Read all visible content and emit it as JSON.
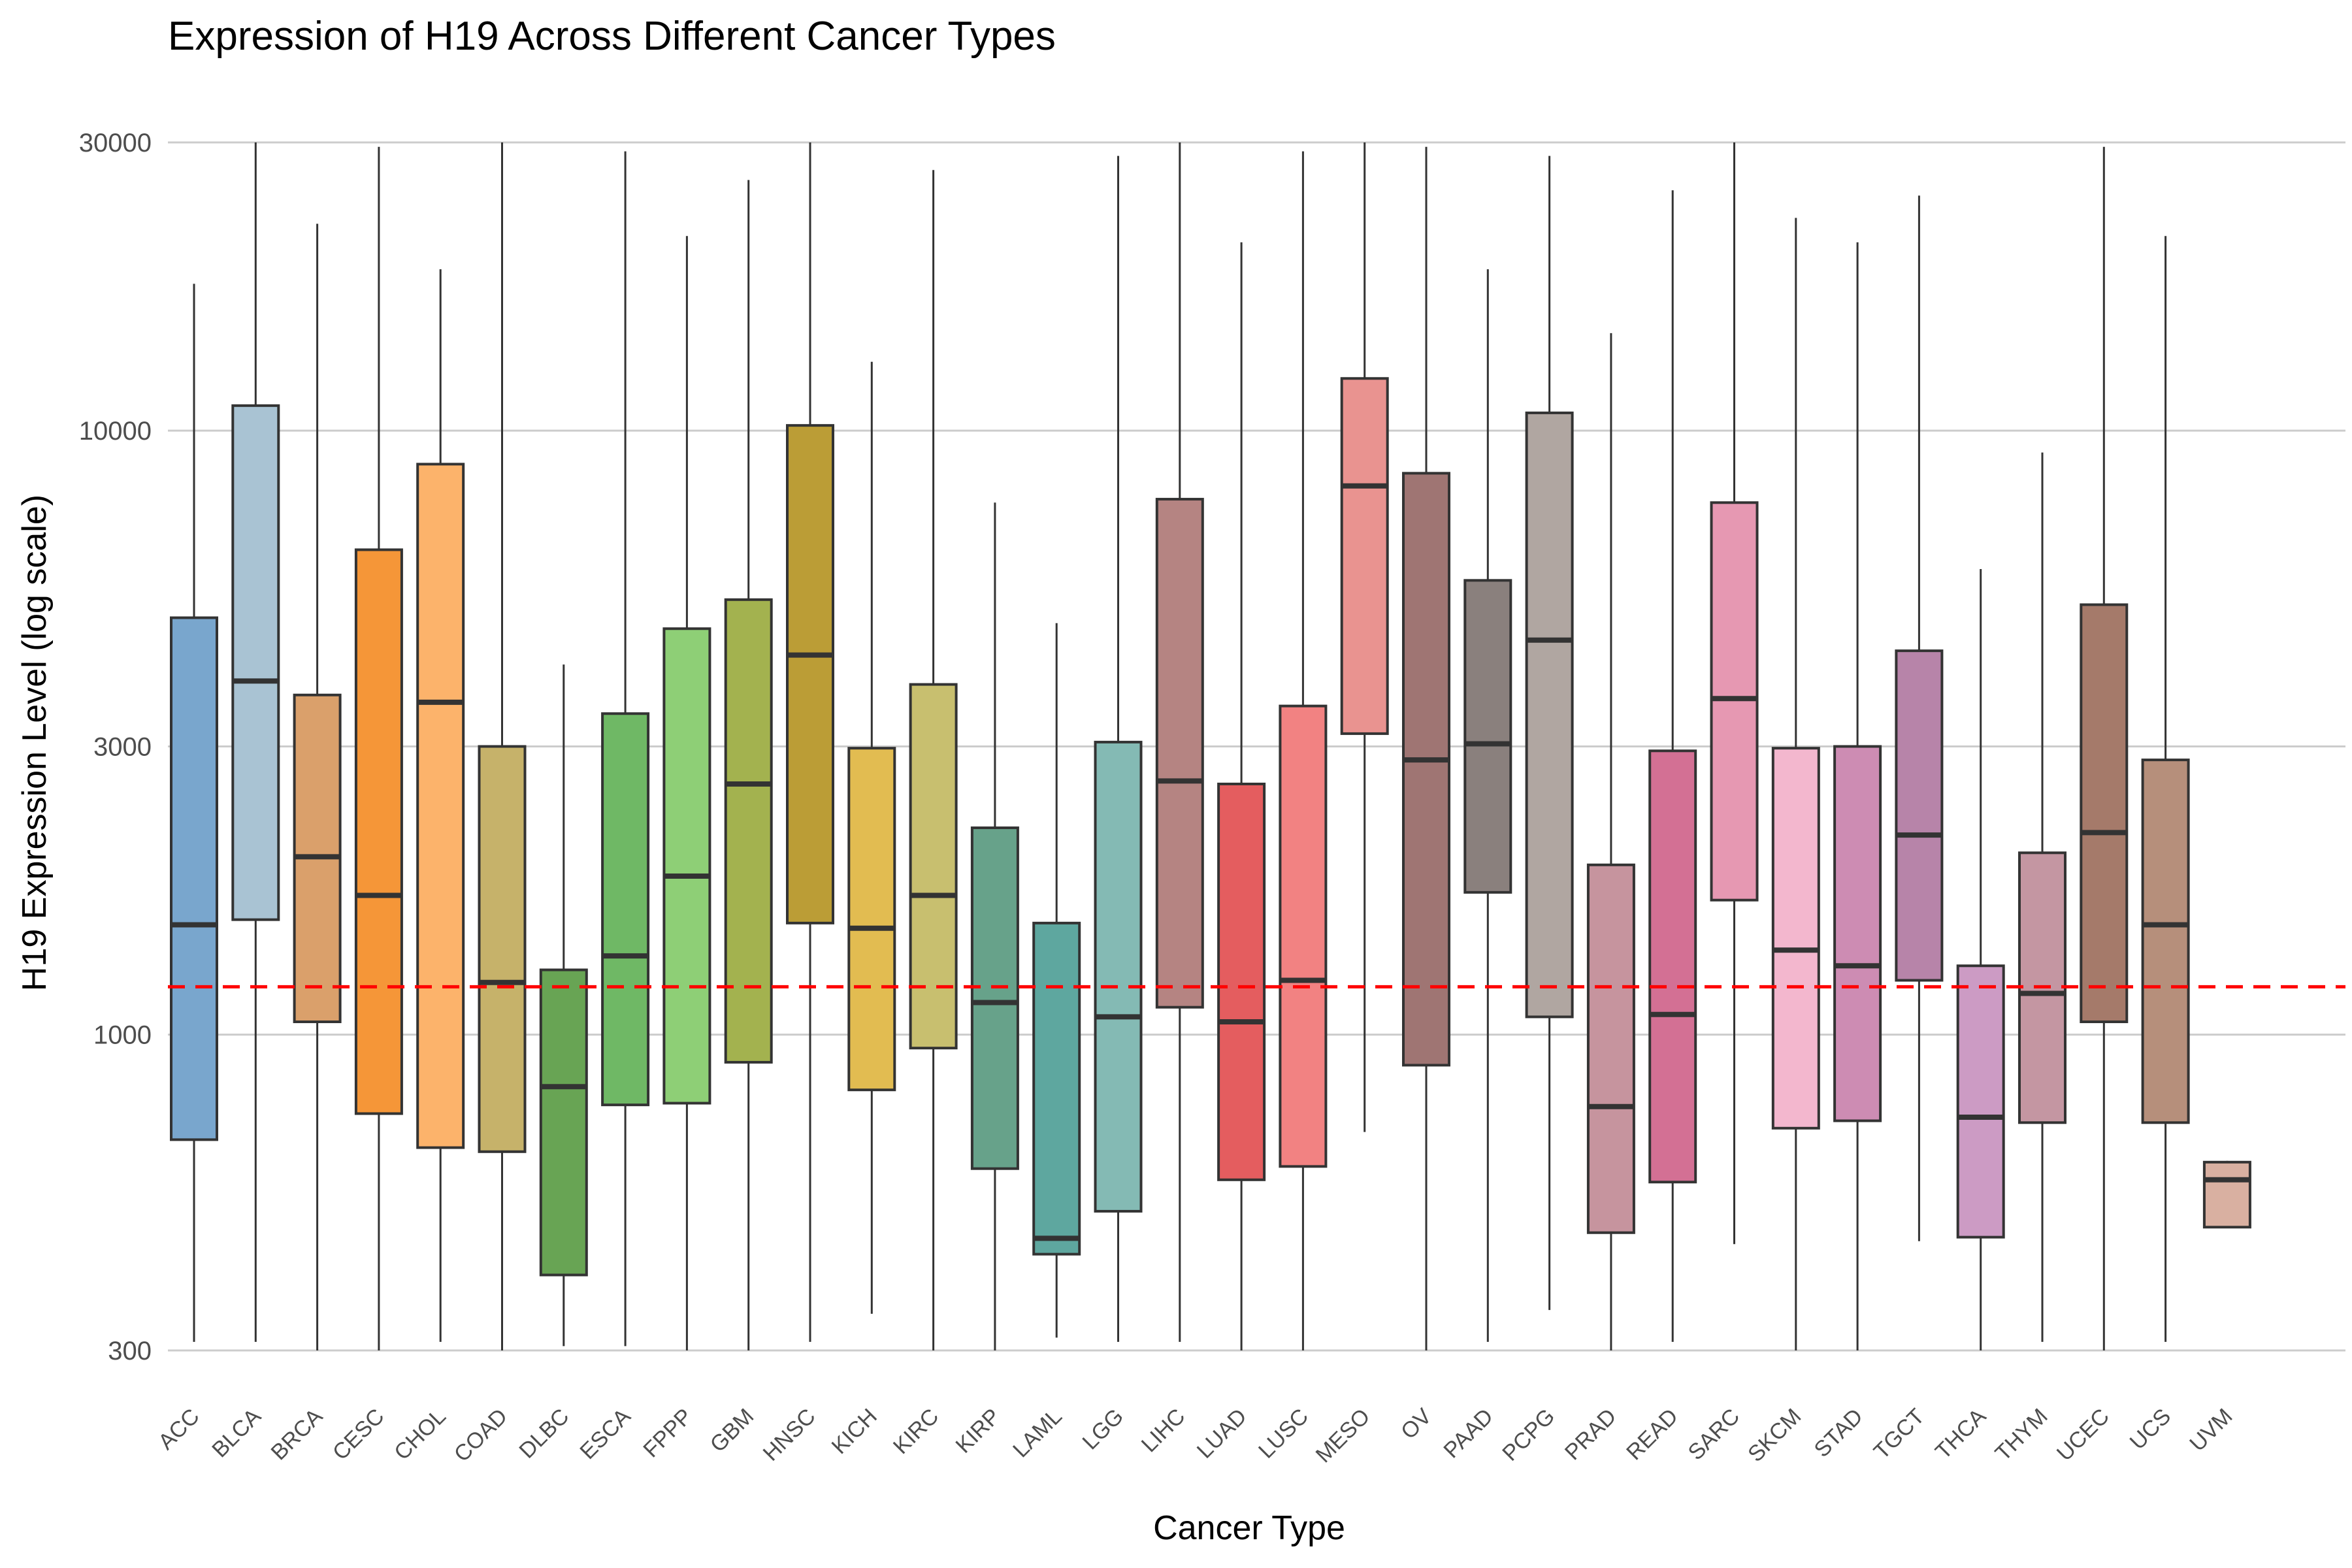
{
  "chart_data": {
    "type": "box",
    "title": "Expression of H19 Across Different Cancer Types",
    "xlabel": "Cancer Type",
    "ylabel": "H19 Expression Level (log scale)",
    "yscale": "log",
    "ylim": [
      300,
      30000
    ],
    "yticks": [
      300,
      1000,
      3000,
      10000,
      30000
    ],
    "ytick_labels": [
      "300",
      "1000",
      "3000",
      "10000",
      "30000"
    ],
    "grid": true,
    "legend": "none",
    "reference_line": {
      "y": 1200,
      "style": "dashed",
      "color": "#ff0000"
    },
    "categories": [
      "ACC",
      "BLCA",
      "BRCA",
      "CESC",
      "CHOL",
      "COAD",
      "DLBC",
      "ESCA",
      "FPPP",
      "GBM",
      "HNSC",
      "KICH",
      "KIRC",
      "KIRP",
      "LAML",
      "LGG",
      "LIHC",
      "LUAD",
      "LUSC",
      "MESO",
      "OV",
      "PAAD",
      "PCPG",
      "PRAD",
      "READ",
      "SARC",
      "SKCM",
      "STAD",
      "TGCT",
      "THCA",
      "THYM",
      "UCEC",
      "UCS",
      "UVM"
    ],
    "boxes": [
      {
        "label": "ACC",
        "min": 310,
        "q1": 670,
        "median": 1520,
        "q3": 4900,
        "max": 17500,
        "color": "#79a6cd"
      },
      {
        "label": "BLCA",
        "min": 310,
        "q1": 1550,
        "median": 3850,
        "q3": 11000,
        "max": 30000,
        "color": "#a9c3d3"
      },
      {
        "label": "BRCA",
        "min": 300,
        "q1": 1050,
        "median": 1970,
        "q3": 3650,
        "max": 22000,
        "color": "#daa06b"
      },
      {
        "label": "CESC",
        "min": 300,
        "q1": 740,
        "median": 1700,
        "q3": 6350,
        "max": 29500,
        "color": "#f59638"
      },
      {
        "label": "CHOL",
        "min": 310,
        "q1": 650,
        "median": 3550,
        "q3": 8800,
        "max": 18500,
        "color": "#fcb36b"
      },
      {
        "label": "COAD",
        "min": 300,
        "q1": 640,
        "median": 1220,
        "q3": 3000,
        "max": 30000,
        "color": "#c6b26a"
      },
      {
        "label": "DLBC",
        "min": 305,
        "q1": 400,
        "median": 820,
        "q3": 1280,
        "max": 4100,
        "color": "#68a454"
      },
      {
        "label": "ESCA",
        "min": 305,
        "q1": 765,
        "median": 1350,
        "q3": 3400,
        "max": 29000,
        "color": "#6fb865"
      },
      {
        "label": "FPPP",
        "min": 300,
        "q1": 770,
        "median": 1830,
        "q3": 4700,
        "max": 21000,
        "color": "#8ecf76"
      },
      {
        "label": "GBM",
        "min": 300,
        "q1": 900,
        "median": 2600,
        "q3": 5250,
        "max": 26000,
        "color": "#a3b24f"
      },
      {
        "label": "HNSC",
        "min": 310,
        "q1": 1530,
        "median": 4250,
        "q3": 10200,
        "max": 30000,
        "color": "#bb9d36"
      },
      {
        "label": "KICH",
        "min": 345,
        "q1": 810,
        "median": 1500,
        "q3": 2980,
        "max": 13000,
        "color": "#e2bc51"
      },
      {
        "label": "KIRC",
        "min": 300,
        "q1": 950,
        "median": 1700,
        "q3": 3800,
        "max": 27000,
        "color": "#c8bf6f"
      },
      {
        "label": "KIRP",
        "min": 300,
        "q1": 600,
        "median": 1130,
        "q3": 2200,
        "max": 7600,
        "color": "#67a28a"
      },
      {
        "label": "LAML",
        "min": 315,
        "q1": 433,
        "median": 460,
        "q3": 1530,
        "max": 4800,
        "color": "#5ea79f"
      },
      {
        "label": "LGG",
        "min": 310,
        "q1": 510,
        "median": 1070,
        "q3": 3050,
        "max": 28500,
        "color": "#84bab4"
      },
      {
        "label": "LIHC",
        "min": 310,
        "q1": 1110,
        "median": 2630,
        "q3": 7700,
        "max": 30000,
        "color": "#b58482"
      },
      {
        "label": "LUAD",
        "min": 300,
        "q1": 575,
        "median": 1050,
        "q3": 2600,
        "max": 20500,
        "color": "#e45d5f"
      },
      {
        "label": "LUSC",
        "min": 300,
        "q1": 605,
        "median": 1230,
        "q3": 3500,
        "max": 29000,
        "color": "#f28282"
      },
      {
        "label": "MESO",
        "min": 690,
        "q1": 3150,
        "median": 8100,
        "q3": 12200,
        "max": 30000,
        "color": "#e99390"
      },
      {
        "label": "OV",
        "min": 300,
        "q1": 890,
        "median": 2850,
        "q3": 8500,
        "max": 29500,
        "color": "#9f7573"
      },
      {
        "label": "PAAD",
        "min": 310,
        "q1": 1720,
        "median": 3030,
        "q3": 5650,
        "max": 18500,
        "color": "#8a807d"
      },
      {
        "label": "PCPG",
        "min": 350,
        "q1": 1070,
        "median": 4500,
        "q3": 10700,
        "max": 28500,
        "color": "#b0a6a1"
      },
      {
        "label": "PRAD",
        "min": 300,
        "q1": 470,
        "median": 760,
        "q3": 1910,
        "max": 14500,
        "color": "#c6949e"
      },
      {
        "label": "READ",
        "min": 310,
        "q1": 570,
        "median": 1080,
        "q3": 2950,
        "max": 25000,
        "color": "#d37094"
      },
      {
        "label": "SARC",
        "min": 450,
        "q1": 1670,
        "median": 3600,
        "q3": 7600,
        "max": 30000,
        "color": "#e698b2"
      },
      {
        "label": "SKCM",
        "min": 300,
        "q1": 700,
        "median": 1380,
        "q3": 2980,
        "max": 22500,
        "color": "#f3b7ce"
      },
      {
        "label": "STAD",
        "min": 300,
        "q1": 720,
        "median": 1300,
        "q3": 3000,
        "max": 20500,
        "color": "#cd8cb3"
      },
      {
        "label": "TGCT",
        "min": 455,
        "q1": 1230,
        "median": 2140,
        "q3": 4320,
        "max": 24500,
        "color": "#b784a9"
      },
      {
        "label": "THCA",
        "min": 300,
        "q1": 462,
        "median": 730,
        "q3": 1300,
        "max": 5900,
        "color": "#cc9bc4"
      },
      {
        "label": "THYM",
        "min": 310,
        "q1": 715,
        "median": 1170,
        "q3": 2000,
        "max": 9200,
        "color": "#c496a2"
      },
      {
        "label": "UCEC",
        "min": 300,
        "q1": 1050,
        "median": 2160,
        "q3": 5150,
        "max": 29500,
        "color": "#a57a6a"
      },
      {
        "label": "UCS",
        "min": 310,
        "q1": 715,
        "median": 1520,
        "q3": 2850,
        "max": 21000,
        "color": "#b68f7b"
      },
      {
        "label": "UVM",
        "min": 478,
        "q1": 480,
        "median": 575,
        "q3": 615,
        "max": 618,
        "color": "#d9b0a1"
      }
    ]
  }
}
